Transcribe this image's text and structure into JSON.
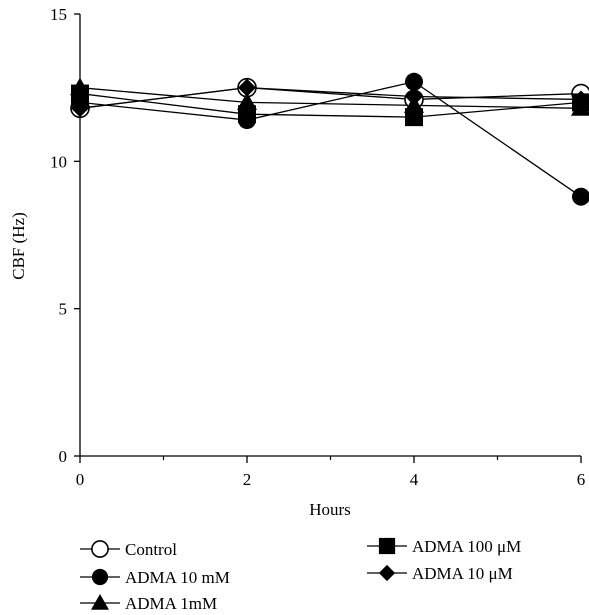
{
  "chart_data": {
    "type": "line",
    "title": "",
    "xlabel": "Hours",
    "ylabel": "CBF (Hz)",
    "xlim": [
      0,
      6
    ],
    "ylim": [
      0,
      15
    ],
    "xticks": [
      0,
      2,
      4,
      6
    ],
    "yticks": [
      0,
      5,
      10,
      15
    ],
    "x_minor_ticks": [
      1,
      3,
      5
    ],
    "grid": false,
    "legend_placement": "bottom",
    "x": [
      0,
      2,
      4,
      6
    ],
    "series": [
      {
        "name": "Control",
        "marker": "circle-open",
        "values": [
          11.8,
          12.5,
          12.1,
          12.3
        ]
      },
      {
        "name": "ADMA 10 mM",
        "marker": "circle-filled",
        "values": [
          12.0,
          11.4,
          12.7,
          8.8
        ]
      },
      {
        "name": "ADMA 1mM",
        "marker": "triangle-filled",
        "values": [
          12.5,
          12.0,
          11.9,
          11.8
        ]
      },
      {
        "name": "ADMA 100 μM",
        "marker": "square-filled",
        "values": [
          12.3,
          11.6,
          11.5,
          12.0
        ]
      },
      {
        "name": "ADMA 10 μM",
        "marker": "diamond-filled",
        "values": [
          11.8,
          12.5,
          12.2,
          12.1
        ]
      }
    ]
  }
}
